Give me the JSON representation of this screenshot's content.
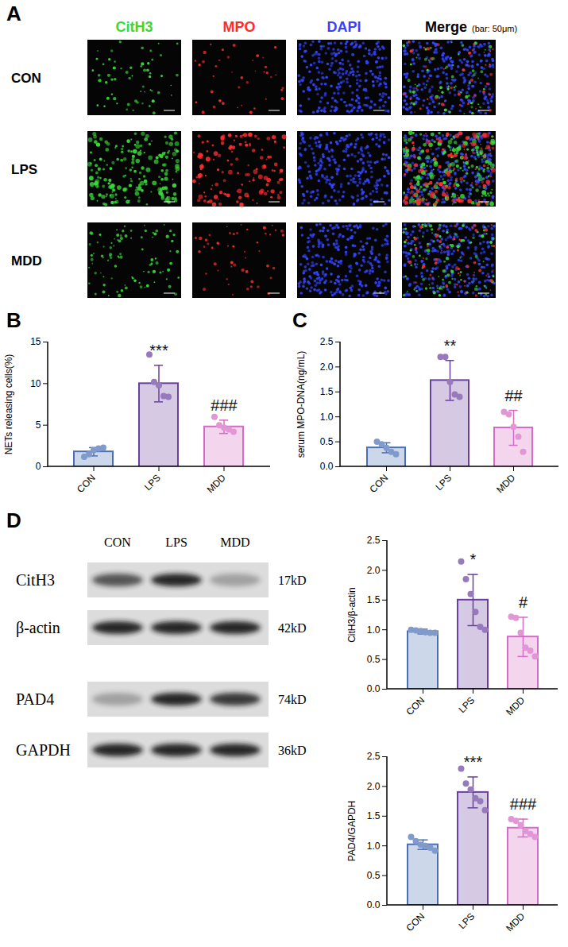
{
  "panel_A": {
    "label": "A",
    "channels": [
      "CitH3",
      "MPO",
      "DAPI",
      "Merge"
    ],
    "scale_note": "(bar: 50μm)",
    "rows": [
      "CON",
      "LPS",
      "MDD"
    ]
  },
  "chart_data": [
    {
      "panel": "B",
      "type": "bar",
      "categories": [
        "CON",
        "LPS",
        "MDD"
      ],
      "values": [
        1.8,
        10.0,
        4.8
      ],
      "errors": [
        0.5,
        2.2,
        0.8
      ],
      "points": [
        [
          1.2,
          1.5,
          2.0,
          2.2,
          2.3
        ],
        [
          13.5,
          10.2,
          9.8,
          8.5,
          8.4
        ],
        [
          6.0,
          5.0,
          4.7,
          4.5,
          4.2
        ]
      ],
      "annotations": [
        null,
        "***",
        "###"
      ],
      "colors": [
        "#4a6fb5",
        "#6b3fa0",
        "#d46bc4"
      ],
      "y_label": "NETs releasing cells(%)",
      "ylim": [
        0,
        15
      ],
      "yticks": [
        0,
        5,
        10,
        15
      ]
    },
    {
      "panel": "C",
      "type": "bar",
      "categories": [
        "CON",
        "LPS",
        "MDD"
      ],
      "values": [
        0.38,
        1.73,
        0.78
      ],
      "errors": [
        0.1,
        0.4,
        0.35
      ],
      "points": [
        [
          0.5,
          0.45,
          0.38,
          0.3,
          0.25
        ],
        [
          2.2,
          2.2,
          1.7,
          1.45,
          1.4
        ],
        [
          1.1,
          1.05,
          0.8,
          0.6,
          0.3
        ]
      ],
      "annotations": [
        null,
        "**",
        "##"
      ],
      "colors": [
        "#4a6fb5",
        "#6b3fa0",
        "#d46bc4"
      ],
      "y_label": "serum MPO-DNA(ng/mL)",
      "ylim": [
        0,
        2.5
      ],
      "yticks": [
        {
          "value": 0,
          "label": "0.0"
        },
        {
          "value": 0.5,
          "label": "0.5"
        },
        {
          "value": 1,
          "label": "1.0"
        },
        {
          "value": 1.5,
          "label": "1.5"
        },
        {
          "value": 2,
          "label": "2.0"
        },
        {
          "value": 2.5,
          "label": "2.5"
        }
      ]
    },
    {
      "type": "bar",
      "categories": [
        "CON",
        "LPS",
        "MDD"
      ],
      "values": [
        0.97,
        1.5,
        0.88
      ],
      "errors": [
        0.04,
        0.43,
        0.33
      ],
      "points": [
        [
          1.0,
          0.99,
          0.98,
          0.96,
          0.95,
          0.95
        ],
        [
          2.15,
          1.85,
          1.6,
          1.3,
          1.05,
          1.0
        ],
        [
          1.22,
          1.2,
          0.95,
          0.7,
          0.65,
          0.55
        ]
      ],
      "annotations": [
        null,
        "*",
        "#"
      ],
      "colors": [
        "#4a6fb5",
        "#6b3fa0",
        "#d46bc4"
      ],
      "y_label": "CitH3/β-actin",
      "ylim": [
        0,
        2.5
      ],
      "yticks": [
        {
          "value": 0,
          "label": "0.0"
        },
        {
          "value": 0.5,
          "label": "0.5"
        },
        {
          "value": 1,
          "label": "1.0"
        },
        {
          "value": 1.5,
          "label": "1.5"
        },
        {
          "value": 2,
          "label": "2.0"
        },
        {
          "value": 2.5,
          "label": "2.5"
        }
      ]
    },
    {
      "type": "bar",
      "categories": [
        "CON",
        "LPS",
        "MDD"
      ],
      "values": [
        1.02,
        1.9,
        1.3
      ],
      "errors": [
        0.08,
        0.26,
        0.15
      ],
      "points": [
        [
          1.15,
          1.08,
          1.02,
          1.0,
          0.97,
          0.92
        ],
        [
          2.3,
          2.05,
          1.95,
          1.8,
          1.75,
          1.6
        ],
        [
          1.45,
          1.42,
          1.35,
          1.25,
          1.2,
          1.15
        ]
      ],
      "annotations": [
        null,
        "***",
        "###"
      ],
      "colors": [
        "#4a6fb5",
        "#6b3fa0",
        "#d46bc4"
      ],
      "y_label": "PAD4/GAPDH",
      "ylim": [
        0,
        2.5
      ],
      "yticks": [
        {
          "value": 0,
          "label": "0.0"
        },
        {
          "value": 0.5,
          "label": "0.5"
        },
        {
          "value": 1,
          "label": "1.0"
        },
        {
          "value": 1.5,
          "label": "1.5"
        },
        {
          "value": 2,
          "label": "2.0"
        },
        {
          "value": 2.5,
          "label": "2.5"
        }
      ]
    }
  ],
  "panel_D_blots": {
    "label": "D",
    "lanes": [
      "CON",
      "LPS",
      "MDD"
    ],
    "rows": [
      {
        "protein": "CitH3",
        "size": "17kD"
      },
      {
        "protein": "β-actin",
        "size": "42kD"
      },
      {
        "protein": "PAD4",
        "size": "74kD"
      },
      {
        "protein": "GAPDH",
        "size": "36kD"
      }
    ]
  }
}
